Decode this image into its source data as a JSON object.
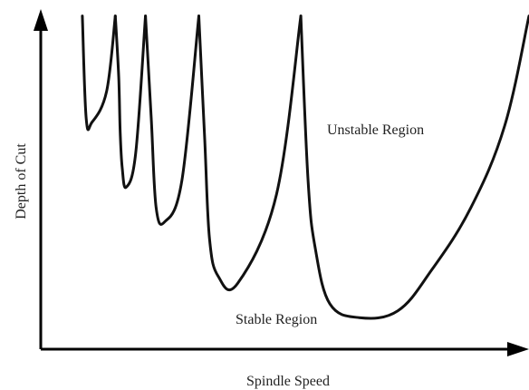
{
  "chart_data": {
    "type": "line",
    "title": "",
    "xlabel": "Spindle Speed",
    "ylabel": "Depth of  Cut",
    "grid": false,
    "ticks": false,
    "annotations": [
      {
        "id": "unstable",
        "text": "Unstable Region"
      },
      {
        "id": "stable",
        "text": "Stable Region"
      }
    ],
    "xlim": [
      0,
      1
    ],
    "ylim": [
      0,
      1
    ],
    "series": [
      {
        "lobes": [
          {
            "x": [
              0.08,
              0.088,
              0.1,
              0.13,
              0.148
            ],
            "y": [
              0.98,
              0.68,
              0.67,
              0.76,
              0.98
            ]
          },
          {
            "x": [
              0.148,
              0.155,
              0.158,
              0.162,
              0.17,
              0.19,
              0.21
            ],
            "y": [
              0.98,
              0.8,
              0.64,
              0.54,
              0.48,
              0.58,
              0.98
            ]
          },
          {
            "x": [
              0.21,
              0.222,
              0.232,
              0.25,
              0.285,
              0.32
            ],
            "y": [
              0.98,
              0.68,
              0.42,
              0.38,
              0.5,
              0.98
            ]
          },
          {
            "x": [
              0.32,
              0.332,
              0.342,
              0.36,
              0.4,
              0.48,
              0.53
            ],
            "y": [
              0.98,
              0.62,
              0.33,
              0.22,
              0.2,
              0.46,
              0.98
            ]
          },
          {
            "x": [
              0.53,
              0.545,
              0.56,
              0.59,
              0.65,
              0.73,
              0.8,
              0.88,
              0.95,
              1.0
            ],
            "y": [
              0.98,
              0.5,
              0.3,
              0.14,
              0.1,
              0.12,
              0.24,
              0.42,
              0.66,
              0.98
            ]
          }
        ]
      }
    ]
  }
}
